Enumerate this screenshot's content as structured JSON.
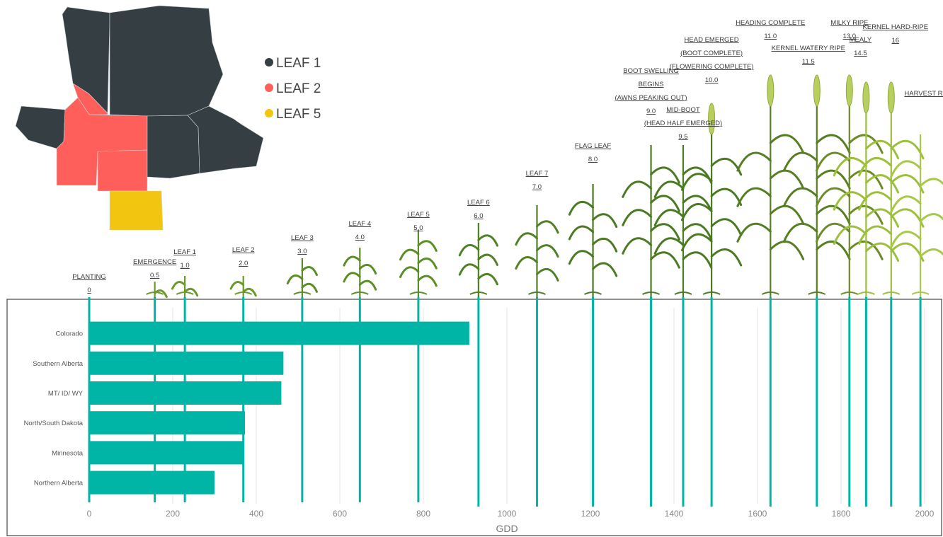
{
  "chart_data": {
    "type": "bar",
    "orientation": "horizontal",
    "categories": [
      "Colorado",
      "Southern Alberta",
      "MT/ ID/ WY",
      "North/South Dakota",
      "Minnesota",
      "Northern Alberta"
    ],
    "values": [
      910,
      465,
      460,
      373,
      371,
      300
    ],
    "xlabel": "GDD",
    "xlim": [
      0,
      2000
    ],
    "xticks": [
      0,
      200,
      400,
      600,
      800,
      1000,
      1200,
      1400,
      1600,
      1800,
      2000
    ],
    "bar_color": "#00b5a5",
    "grid": true,
    "stages": [
      {
        "lines": [
          "PLANTING"
        ],
        "code": "0",
        "gdd": 0
      },
      {
        "lines": [
          "EMERGENCE"
        ],
        "code": "0.5",
        "gdd": 157
      },
      {
        "lines": [
          "LEAF 1"
        ],
        "code": "1.0",
        "gdd": 229
      },
      {
        "lines": [
          "LEAF 2"
        ],
        "code": "2.0",
        "gdd": 369
      },
      {
        "lines": [
          "LEAF 3"
        ],
        "code": "3.0",
        "gdd": 510
      },
      {
        "lines": [
          "LEAF 4"
        ],
        "code": "4.0",
        "gdd": 648
      },
      {
        "lines": [
          "LEAF 5"
        ],
        "code": "5.0",
        "gdd": 788
      },
      {
        "lines": [
          "LEAF 6"
        ],
        "code": "6.0",
        "gdd": 932
      },
      {
        "lines": [
          "LEAF 7"
        ],
        "code": "7.0",
        "gdd": 1072
      },
      {
        "lines": [
          "FLAG LEAF"
        ],
        "code": "8.0",
        "gdd": 1206
      },
      {
        "lines": [
          "BOOT SWELLING",
          "BEGINS",
          "(AWNS PEAKING OUT)"
        ],
        "code": "9.0",
        "gdd": 1345
      },
      {
        "lines": [
          "MID-BOOT",
          "(HEAD HALF EMERGED)"
        ],
        "code": "9.5",
        "gdd": 1422
      },
      {
        "lines": [
          "HEAD EMERGED",
          "(BOOT COMPLETE)",
          "(FLOWERING COMPLETE)"
        ],
        "code": "10.0",
        "gdd": 1490
      },
      {
        "lines": [
          "HEADING COMPLETE"
        ],
        "code": "11.0",
        "gdd": 1631
      },
      {
        "lines": [
          "KERNEL WATERY RIPE"
        ],
        "code": "11.5",
        "gdd": 1742
      },
      {
        "lines": [
          "MILKY RIPE"
        ],
        "code": "13.0",
        "gdd": 1820
      },
      {
        "lines": [
          "MEALY"
        ],
        "code": "14.5",
        "gdd": 1860
      },
      {
        "lines": [
          "KERNEL HARD-RIPE"
        ],
        "code": "16",
        "gdd": 1920
      },
      {
        "lines": [
          "HARVEST RIPE"
        ],
        "code": "",
        "gdd": 1990
      }
    ],
    "stage_line_color": "#00b5a5",
    "map_legend": [
      {
        "label": "LEAF 1",
        "color": "#353e42"
      },
      {
        "label": "LEAF 2",
        "color": "#ff5f5a"
      },
      {
        "label": "LEAF 5",
        "color": "#f2c511"
      }
    ]
  }
}
